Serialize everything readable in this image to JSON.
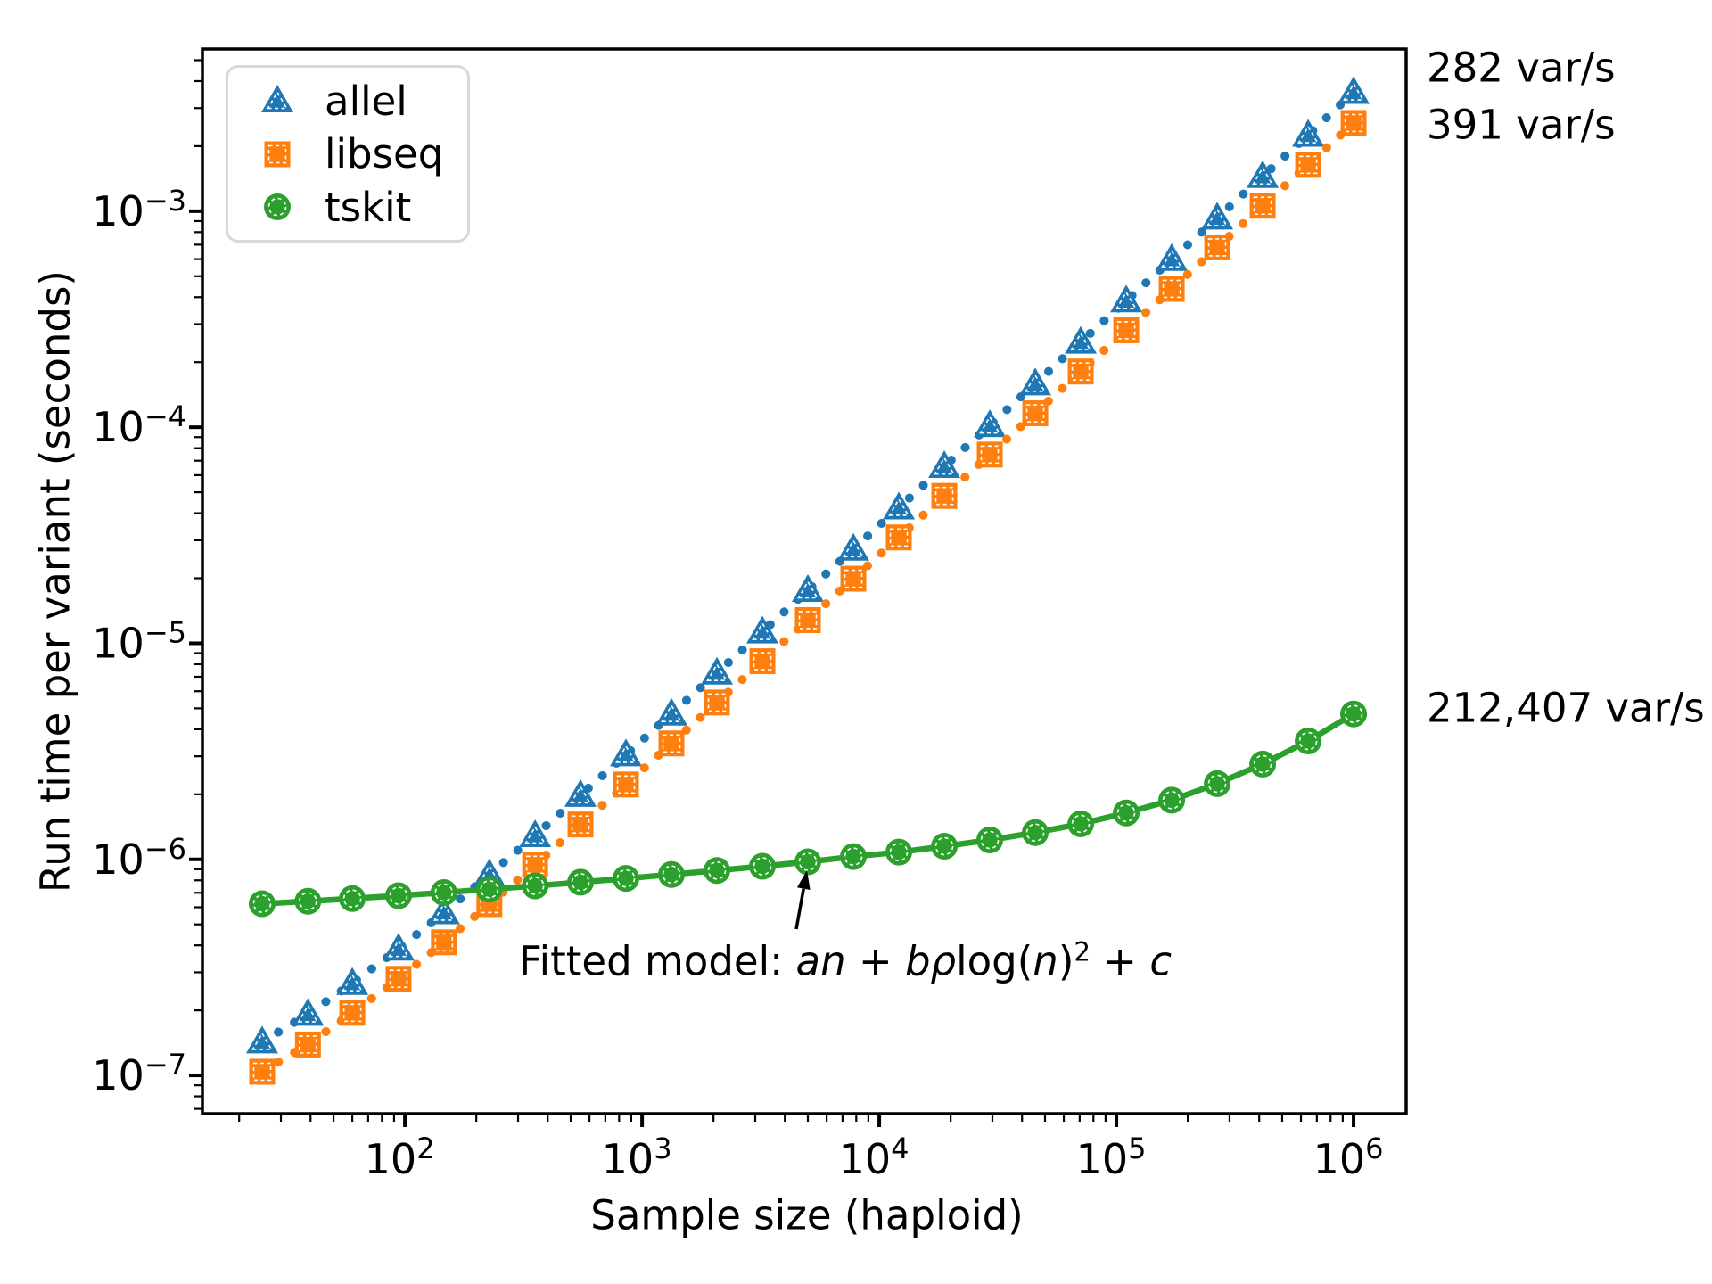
{
  "chart_data": {
    "type": "line",
    "title": "",
    "xlabel": "Sample size (haploid)",
    "ylabel": "Run time per variant (seconds)",
    "xscale": "log",
    "yscale": "log",
    "xlim": [
      14,
      1666000
    ],
    "ylim": [
      6.65e-08,
      0.00563
    ],
    "grid": false,
    "legend_position": "upper left",
    "x": [
      25,
      39,
      60,
      94,
      146,
      227,
      354,
      550,
      855,
      1330,
      2068,
      3216,
      5000,
      7776,
      12093,
      18807,
      29246,
      45482,
      70727,
      109990,
      171050,
      266010,
      413680,
      643330,
      1000000
    ],
    "series": [
      {
        "name": "allel",
        "color": "#1f77b4",
        "marker": "triangle",
        "linestyle": "dotted",
        "final_rate": "282 var/s",
        "values": [
          1.43e-07,
          1.92e-07,
          2.67e-07,
          3.85e-07,
          5.67e-07,
          8.5e-07,
          1.29e-06,
          1.98e-06,
          3.05e-06,
          4.71e-06,
          7.29e-06,
          1.13e-05,
          1.76e-05,
          2.73e-05,
          4.24e-05,
          6.59e-05,
          0.000102,
          0.000159,
          0.000248,
          0.000385,
          0.000599,
          0.000931,
          0.00145,
          0.00225,
          0.00355
        ]
      },
      {
        "name": "libseq",
        "color": "#ff7f0e",
        "marker": "square",
        "linestyle": "dotted",
        "final_rate": "391 var/s",
        "values": [
          1.04e-07,
          1.39e-07,
          1.95e-07,
          2.8e-07,
          4.13e-07,
          6.21e-07,
          9.44e-07,
          1.45e-06,
          2.22e-06,
          3.44e-06,
          5.32e-06,
          8.26e-06,
          1.28e-05,
          1.99e-05,
          3.09e-05,
          4.81e-05,
          7.47e-05,
          0.000116,
          0.000181,
          0.000281,
          0.000437,
          0.00068,
          0.00106,
          0.00164,
          0.00256
        ]
      },
      {
        "name": "tskit",
        "color": "#2ca02c",
        "marker": "circle",
        "linestyle": "solid",
        "final_rate": "212,407 var/s",
        "values": [
          6.23e-07,
          6.4e-07,
          6.58e-07,
          6.79e-07,
          7.02e-07,
          7.27e-07,
          7.54e-07,
          7.84e-07,
          8.16e-07,
          8.51e-07,
          8.88e-07,
          9.29e-07,
          9.74e-07,
          1.03e-06,
          1.08e-06,
          1.15e-06,
          1.23e-06,
          1.33e-06,
          1.46e-06,
          1.64e-06,
          1.88e-06,
          2.24e-06,
          2.76e-06,
          3.53e-06,
          4.71e-06
        ]
      }
    ],
    "x_ticks": [
      {
        "base": "10",
        "exp": "2",
        "value": 100
      },
      {
        "base": "10",
        "exp": "3",
        "value": 1000
      },
      {
        "base": "10",
        "exp": "4",
        "value": 10000
      },
      {
        "base": "10",
        "exp": "5",
        "value": 100000
      },
      {
        "base": "10",
        "exp": "6",
        "value": 1000000
      }
    ],
    "y_ticks": [
      {
        "base": "10",
        "exp": "−3",
        "value": 0.001
      },
      {
        "base": "10",
        "exp": "−4",
        "value": 0.0001
      },
      {
        "base": "10",
        "exp": "−5",
        "value": 1e-05
      },
      {
        "base": "10",
        "exp": "−6",
        "value": 1e-06
      },
      {
        "base": "10",
        "exp": "−7",
        "value": 1e-07
      }
    ],
    "fit_annotation": {
      "prefix": "Fitted model: ",
      "term_an": "an",
      "plus_1": " + ",
      "term_brho": "bρ",
      "log_fn": "log(",
      "var_n": "n",
      "close_paren": ")",
      "exponent": "2",
      "plus_2": " + ",
      "term_c": "c"
    }
  }
}
